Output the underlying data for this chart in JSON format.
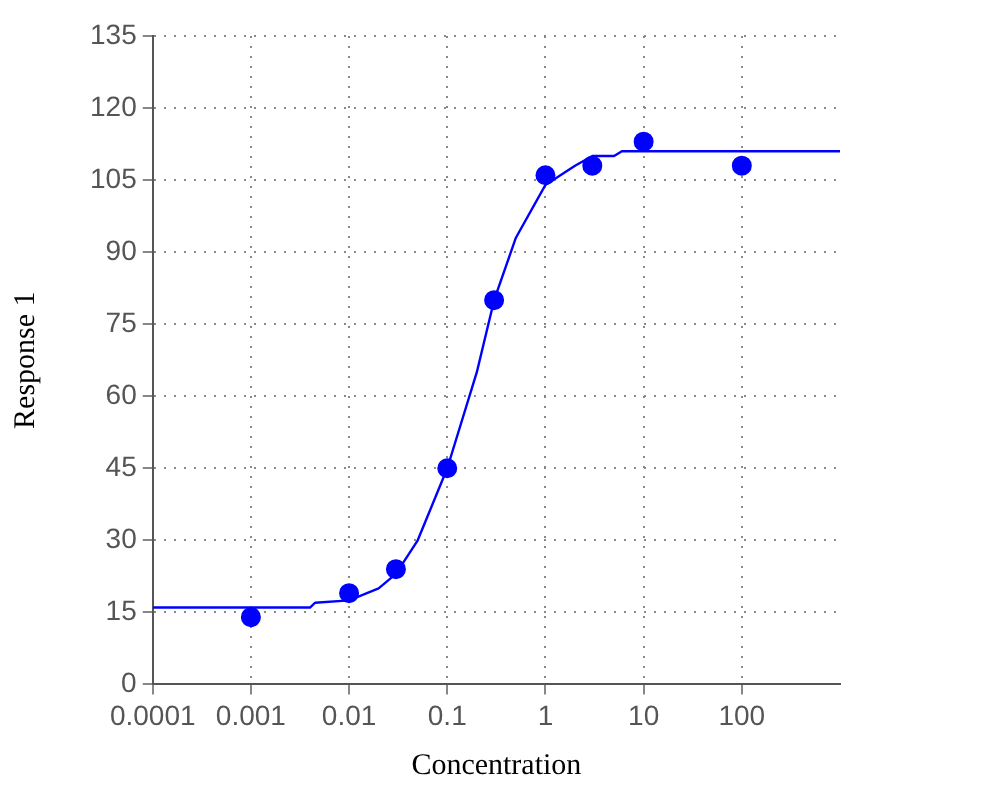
{
  "chart_data": {
    "type": "scatter",
    "xlabel": "Concentration",
    "ylabel": "Response 1",
    "log": "x",
    "grid": true,
    "legend": false,
    "xlim": [
      0.0001,
      1000
    ],
    "xticks": [
      0.0001,
      0.001,
      0.01,
      0.1,
      1,
      10,
      100
    ],
    "ylim": [
      0,
      135
    ],
    "yticks": [
      0,
      15,
      30,
      45,
      60,
      75,
      90,
      105,
      120,
      135
    ],
    "series": [
      {
        "marker": "circle",
        "color": "#0000ff",
        "x": [
          0.001,
          0.01,
          0.03,
          0.1,
          0.3,
          1,
          3,
          10,
          100
        ],
        "values": [
          14,
          19,
          24,
          45,
          80,
          106,
          108,
          113,
          108
        ]
      },
      {
        "type": "line",
        "marker": "none",
        "color": "#0000ff",
        "x": [
          0.0001,
          0.001,
          0.004,
          0.0045,
          0.01,
          0.02,
          0.03,
          0.05,
          0.1,
          0.2,
          0.3,
          0.5,
          1,
          2,
          3,
          5,
          6,
          10,
          100,
          1000
        ],
        "values": [
          16,
          16,
          16,
          17,
          17.5,
          20,
          23,
          30,
          45,
          65,
          80,
          93,
          104,
          108,
          110,
          110,
          111,
          111,
          111,
          111
        ]
      }
    ]
  }
}
